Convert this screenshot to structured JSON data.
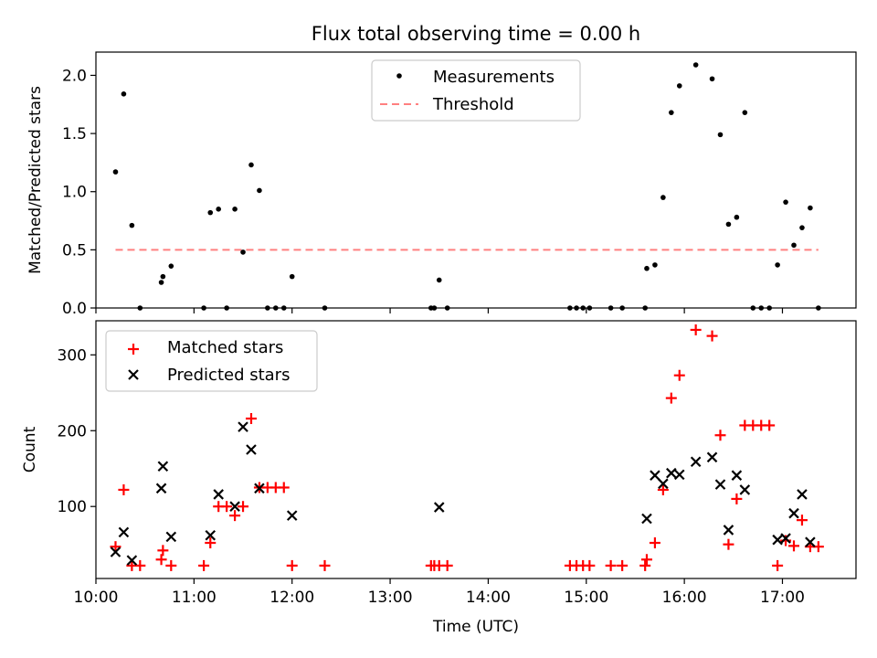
{
  "title": "Flux total observing time = 0.00 h",
  "chart_data": [
    {
      "type": "scatter",
      "ylabel": "Matched/Predicted stars",
      "xlim": [
        "10:00",
        "17:45"
      ],
      "ylim": [
        0,
        2.2
      ],
      "yticks": [
        "0.0",
        "0.5",
        "1.0",
        "1.5",
        "2.0"
      ],
      "legend": {
        "position": "upper-center",
        "entries": [
          "Measurements",
          "Threshold"
        ]
      },
      "threshold": {
        "name": "Threshold",
        "y": 0.5,
        "x_range": [
          "10:12",
          "17:22"
        ],
        "color": "#ff8080",
        "style": "dashed"
      },
      "series": [
        {
          "name": "Measurements",
          "color": "#000000",
          "marker": "dot",
          "points": [
            [
              "10:12",
              1.17
            ],
            [
              "10:17",
              1.84
            ],
            [
              "10:22",
              0.71
            ],
            [
              "10:27",
              0.0
            ],
            [
              "10:40",
              0.22
            ],
            [
              "10:41",
              0.27
            ],
            [
              "10:46",
              0.36
            ],
            [
              "11:06",
              0.0
            ],
            [
              "11:10",
              0.82
            ],
            [
              "11:15",
              0.85
            ],
            [
              "11:20",
              0.0
            ],
            [
              "11:25",
              0.85
            ],
            [
              "11:30",
              0.48
            ],
            [
              "11:35",
              1.23
            ],
            [
              "11:40",
              1.01
            ],
            [
              "11:45",
              0.0
            ],
            [
              "11:50",
              0.0
            ],
            [
              "11:55",
              0.0
            ],
            [
              "12:00",
              0.27
            ],
            [
              "12:20",
              0.0
            ],
            [
              "13:25",
              0.0
            ],
            [
              "13:27",
              0.0
            ],
            [
              "13:30",
              0.24
            ],
            [
              "13:35",
              0.0
            ],
            [
              "14:50",
              0.0
            ],
            [
              "14:54",
              0.0
            ],
            [
              "14:58",
              0.0
            ],
            [
              "15:02",
              0.0
            ],
            [
              "15:15",
              0.0
            ],
            [
              "15:22",
              0.0
            ],
            [
              "15:36",
              0.0
            ],
            [
              "15:37",
              0.34
            ],
            [
              "15:42",
              0.37
            ],
            [
              "15:47",
              0.95
            ],
            [
              "15:52",
              1.68
            ],
            [
              "15:57",
              1.91
            ],
            [
              "16:07",
              2.09
            ],
            [
              "16:17",
              1.97
            ],
            [
              "16:22",
              1.49
            ],
            [
              "16:27",
              0.72
            ],
            [
              "16:32",
              0.78
            ],
            [
              "16:37",
              1.68
            ],
            [
              "16:42",
              0.0
            ],
            [
              "16:47",
              0.0
            ],
            [
              "16:52",
              0.0
            ],
            [
              "16:57",
              0.37
            ],
            [
              "17:02",
              0.91
            ],
            [
              "17:07",
              0.54
            ],
            [
              "17:12",
              0.69
            ],
            [
              "17:17",
              0.86
            ],
            [
              "17:22",
              0.0
            ]
          ]
        }
      ]
    },
    {
      "type": "scatter",
      "xlabel": "Time (UTC)",
      "ylabel": "Count",
      "xlim": [
        "10:00",
        "17:45"
      ],
      "ylim": [
        5,
        345
      ],
      "yticks": [
        "100",
        "200",
        "300"
      ],
      "xticks": [
        "10:00",
        "11:00",
        "12:00",
        "13:00",
        "14:00",
        "15:00",
        "16:00",
        "17:00"
      ],
      "legend": {
        "position": "upper-left",
        "entries": [
          "Matched stars",
          "Predicted stars"
        ]
      },
      "series": [
        {
          "name": "Matched stars",
          "color": "#ff0000",
          "marker": "plus",
          "points": [
            [
              "10:12",
              47
            ],
            [
              "10:17",
              122
            ],
            [
              "10:22",
              22
            ],
            [
              "10:27",
              22
            ],
            [
              "10:40",
              30
            ],
            [
              "10:41",
              42
            ],
            [
              "10:46",
              22
            ],
            [
              "11:06",
              22
            ],
            [
              "11:10",
              52
            ],
            [
              "11:15",
              100
            ],
            [
              "11:20",
              100
            ],
            [
              "11:25",
              88
            ],
            [
              "11:30",
              100
            ],
            [
              "11:35",
              216
            ],
            [
              "11:40",
              125
            ],
            [
              "11:45",
              125
            ],
            [
              "11:50",
              125
            ],
            [
              "11:55",
              125
            ],
            [
              "12:00",
              22
            ],
            [
              "12:20",
              22
            ],
            [
              "13:25",
              22
            ],
            [
              "13:27",
              22
            ],
            [
              "13:30",
              22
            ],
            [
              "13:35",
              22
            ],
            [
              "14:50",
              22
            ],
            [
              "14:54",
              22
            ],
            [
              "14:58",
              22
            ],
            [
              "15:02",
              22
            ],
            [
              "15:15",
              22
            ],
            [
              "15:22",
              22
            ],
            [
              "15:36",
              22
            ],
            [
              "15:37",
              30
            ],
            [
              "15:42",
              52
            ],
            [
              "15:47",
              122
            ],
            [
              "15:52",
              243
            ],
            [
              "15:57",
              273
            ],
            [
              "16:07",
              333
            ],
            [
              "16:17",
              325
            ],
            [
              "16:22",
              194
            ],
            [
              "16:27",
              50
            ],
            [
              "16:32",
              110
            ],
            [
              "16:37",
              207
            ],
            [
              "16:42",
              207
            ],
            [
              "16:47",
              207
            ],
            [
              "16:52",
              207
            ],
            [
              "16:57",
              22
            ],
            [
              "17:02",
              55
            ],
            [
              "17:07",
              48
            ],
            [
              "17:12",
              82
            ],
            [
              "17:17",
              47
            ],
            [
              "17:22",
              47
            ]
          ]
        },
        {
          "name": "Predicted stars",
          "color": "#000000",
          "marker": "x",
          "points": [
            [
              "10:12",
              40
            ],
            [
              "10:17",
              66
            ],
            [
              "10:22",
              29
            ],
            [
              "10:40",
              124
            ],
            [
              "10:41",
              153
            ],
            [
              "10:46",
              60
            ],
            [
              "11:10",
              62
            ],
            [
              "11:15",
              116
            ],
            [
              "11:25",
              100
            ],
            [
              "11:30",
              205
            ],
            [
              "11:35",
              175
            ],
            [
              "11:40",
              124
            ],
            [
              "12:00",
              88
            ],
            [
              "13:30",
              99
            ],
            [
              "15:37",
              84
            ],
            [
              "15:42",
              141
            ],
            [
              "15:47",
              130
            ],
            [
              "15:52",
              144
            ],
            [
              "15:57",
              142
            ],
            [
              "16:07",
              159
            ],
            [
              "16:17",
              165
            ],
            [
              "16:22",
              129
            ],
            [
              "16:27",
              69
            ],
            [
              "16:32",
              141
            ],
            [
              "16:37",
              122
            ],
            [
              "16:57",
              56
            ],
            [
              "17:02",
              58
            ],
            [
              "17:07",
              91
            ],
            [
              "17:12",
              116
            ],
            [
              "17:17",
              53
            ]
          ]
        }
      ]
    }
  ]
}
